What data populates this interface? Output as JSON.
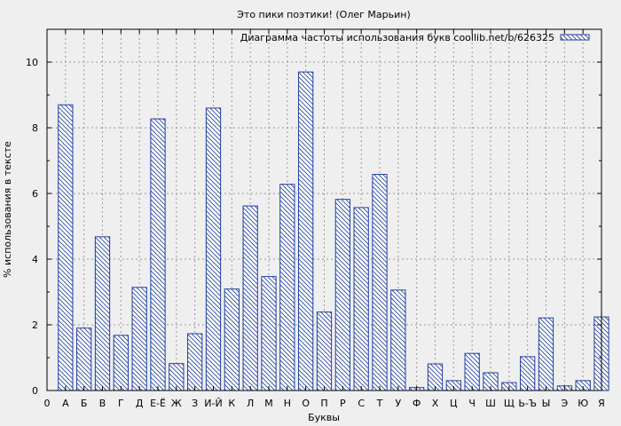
{
  "chart_data": {
    "type": "bar",
    "title": "Это пики поэтики! (Олег Марьин)",
    "xlabel": "Буквы",
    "ylabel": "% использования в тексте",
    "categories": [
      "А",
      "Б",
      "В",
      "Г",
      "Д",
      "Е-Ё",
      "Ж",
      "З",
      "И-Й",
      "К",
      "Л",
      "М",
      "Н",
      "О",
      "П",
      "Р",
      "С",
      "Т",
      "У",
      "Ф",
      "Х",
      "Ц",
      "Ч",
      "Ш",
      "Щ",
      "Ь-Ъ",
      "Ы",
      "Э",
      "Ю",
      "Я"
    ],
    "x_tick_labels": [
      "0",
      "А",
      "Б",
      "В",
      "Г",
      "Д",
      "Е-Ё",
      "Ж",
      "З",
      "И-Й",
      "К",
      "Л",
      "М",
      "Н",
      "О",
      "П",
      "Р",
      "С",
      "Т",
      "У",
      "Ф",
      "Х",
      "Ц",
      "Ч",
      "Ш",
      "Щ",
      "Ь-Ъ",
      "Ы",
      "Э",
      "Ю",
      "Я"
    ],
    "series": [
      {
        "name": "Диаграмма частоты использования букв coollib.net/b/626325",
        "values": [
          8.7,
          1.9,
          4.68,
          1.68,
          3.14,
          8.27,
          0.82,
          1.73,
          8.6,
          3.09,
          5.62,
          3.47,
          6.28,
          9.7,
          2.39,
          5.82,
          5.57,
          6.58,
          3.06,
          0.09,
          0.81,
          0.3,
          1.13,
          0.54,
          0.24,
          1.03,
          2.21,
          0.14,
          0.3,
          2.24
        ]
      }
    ],
    "ylim": [
      0,
      11
    ],
    "yticks": [
      0,
      2,
      4,
      6,
      8,
      10
    ],
    "grid": true,
    "legend_position": "top-right",
    "colors": {
      "bar_edge": "#1f3f9f",
      "hatch": "#1f3f9f",
      "bar_fill": "#ffffff",
      "background": "#efefef",
      "plot_bg": "#efefef"
    }
  }
}
